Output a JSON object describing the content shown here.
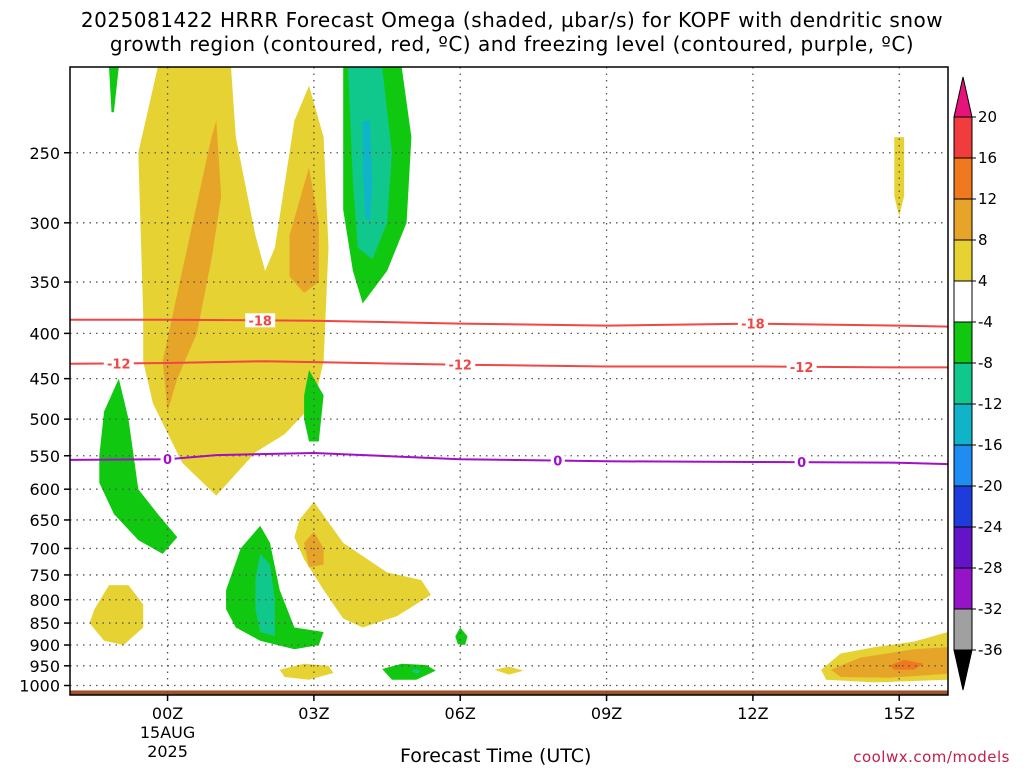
{
  "title": "2025081422 HRRR Forecast Omega (shaded, µbar/s) for KOPF with dendritic snow\ngrowth region (contoured, red, ºC) and freezing level (contoured, purple, ºC)",
  "footer": "coolwx.com/models",
  "chart_data": {
    "type": "heatmap",
    "title": "2025081422 HRRR Forecast Omega (shaded, µbar/s) for KOPF with dendritic snow growth region (contoured, red, ºC) and freezing level (contoured, purple, ºC)",
    "xlabel": "Forecast Time (UTC)",
    "ylabel": "",
    "x_units": "hours from 2025-08-15 00Z",
    "xlim": [
      -2,
      16
    ],
    "ylim_hPa": [
      1025,
      200
    ],
    "y_scale": "log-pressure",
    "grid": true,
    "x_ticks": [
      {
        "value": 0,
        "label": "00Z",
        "sub1": "15AUG",
        "sub2": "2025"
      },
      {
        "value": 3,
        "label": "03Z"
      },
      {
        "value": 6,
        "label": "06Z"
      },
      {
        "value": 9,
        "label": "09Z"
      },
      {
        "value": 12,
        "label": "12Z"
      },
      {
        "value": 15,
        "label": "15Z"
      }
    ],
    "y_ticks": [
      250,
      300,
      350,
      400,
      450,
      500,
      550,
      600,
      650,
      700,
      750,
      800,
      850,
      900,
      950,
      1000
    ],
    "colorbar": {
      "levels": [
        20,
        16,
        12,
        8,
        4,
        -4,
        -8,
        -12,
        -16,
        -20,
        -24,
        -28,
        -32,
        -36
      ],
      "colors": [
        "#f03c3c",
        "#f0781e",
        "#e6a528",
        "#e6d232",
        "#ffffff",
        "#10c810",
        "#10c88c",
        "#10b4c8",
        "#1e8cf0",
        "#1e3cdc",
        "#6414c8",
        "#9614c8",
        "#a0a0a0"
      ],
      "over_color": "#e6147a",
      "under_color": "#000000"
    },
    "contours": [
      {
        "name": "-18",
        "color": "#f04646",
        "points": [
          [
            -2,
            386
          ],
          [
            0,
            386
          ],
          [
            3,
            387
          ],
          [
            6,
            390
          ],
          [
            9,
            392
          ],
          [
            12,
            390
          ],
          [
            15,
            392
          ],
          [
            16,
            393
          ]
        ],
        "labels": [
          {
            "x": 1.9,
            "text": "-18"
          },
          {
            "x": 12,
            "text": "-18"
          }
        ]
      },
      {
        "name": "-12",
        "color": "#f04646",
        "points": [
          [
            -2,
            433
          ],
          [
            0,
            432
          ],
          [
            2,
            430
          ],
          [
            4,
            432
          ],
          [
            6,
            434
          ],
          [
            9,
            436
          ],
          [
            12,
            436
          ],
          [
            15,
            437
          ],
          [
            16,
            437
          ]
        ],
        "labels": [
          {
            "x": -1,
            "text": "-12"
          },
          {
            "x": 6,
            "text": "-12"
          },
          {
            "x": 13,
            "text": "-12"
          }
        ]
      },
      {
        "name": "0",
        "color": "#a010c8",
        "points": [
          [
            -2,
            556
          ],
          [
            0,
            555
          ],
          [
            1,
            549
          ],
          [
            3,
            546
          ],
          [
            6,
            555
          ],
          [
            9,
            558
          ],
          [
            12,
            559
          ],
          [
            15,
            560
          ],
          [
            16,
            562
          ]
        ],
        "labels": [
          {
            "x": 0,
            "text": "0"
          },
          {
            "x": 8,
            "text": "0"
          },
          {
            "x": 13,
            "text": "0"
          }
        ]
      }
    ],
    "shaded_regions": [
      {
        "level": "4 to 8",
        "color": "#e6d232",
        "points": [
          [
            -0.5,
            380
          ],
          [
            -0.6,
            250
          ],
          [
            -0.2,
            200
          ],
          [
            1.3,
            200
          ],
          [
            1.4,
            240
          ],
          [
            1.8,
            310
          ],
          [
            2.0,
            340
          ],
          [
            2.2,
            320
          ],
          [
            2.6,
            230
          ],
          [
            2.9,
            210
          ],
          [
            3.2,
            240
          ],
          [
            3.3,
            320
          ],
          [
            3.2,
            430
          ],
          [
            3.0,
            480
          ],
          [
            2.4,
            520
          ],
          [
            1.8,
            545
          ],
          [
            1.0,
            610
          ],
          [
            0.3,
            560
          ],
          [
            -0.3,
            480
          ],
          [
            -0.5,
            430
          ]
        ]
      },
      {
        "level": "4 to 8",
        "color": "#e6d232",
        "points": [
          [
            2.7,
            650
          ],
          [
            3.0,
            620
          ],
          [
            3.6,
            690
          ],
          [
            4.5,
            745
          ],
          [
            5.2,
            760
          ],
          [
            5.4,
            790
          ],
          [
            4.7,
            835
          ],
          [
            4.0,
            860
          ],
          [
            3.6,
            840
          ],
          [
            3.2,
            780
          ],
          [
            2.8,
            720
          ],
          [
            2.6,
            680
          ]
        ]
      },
      {
        "level": "4 to 8",
        "color": "#e6d232",
        "points": [
          [
            -1.5,
            820
          ],
          [
            -1.2,
            770
          ],
          [
            -0.8,
            770
          ],
          [
            -0.5,
            810
          ],
          [
            -0.5,
            860
          ],
          [
            -0.9,
            900
          ],
          [
            -1.3,
            890
          ],
          [
            -1.6,
            850
          ]
        ]
      },
      {
        "level": "4 to 8",
        "color": "#e6d232",
        "points": [
          [
            2.3,
            960
          ],
          [
            2.8,
            945
          ],
          [
            3.3,
            950
          ],
          [
            3.4,
            968
          ],
          [
            2.9,
            985
          ],
          [
            2.4,
            978
          ]
        ]
      },
      {
        "level": "4 to 8",
        "color": "#e6d232",
        "points": [
          [
            6.7,
            960
          ],
          [
            7.0,
            952
          ],
          [
            7.3,
            962
          ],
          [
            7.0,
            972
          ]
        ]
      },
      {
        "level": "4 to 8",
        "color": "#e6d232",
        "points": [
          [
            14.9,
            240
          ],
          [
            15.1,
            240
          ],
          [
            15.1,
            280
          ],
          [
            15.0,
            295
          ],
          [
            14.9,
            280
          ]
        ]
      },
      {
        "level": "4 to 8",
        "color": "#e6d232",
        "points": [
          [
            13.4,
            960
          ],
          [
            13.8,
            920
          ],
          [
            14.5,
            905
          ],
          [
            15.3,
            892
          ],
          [
            16.0,
            870
          ],
          [
            16.0,
            985
          ],
          [
            14.5,
            992
          ],
          [
            13.5,
            985
          ]
        ]
      },
      {
        "level": "8 to 12",
        "color": "#e6a528",
        "points": [
          [
            -0.1,
            430
          ],
          [
            0.3,
            340
          ],
          [
            0.9,
            240
          ],
          [
            1.0,
            230
          ],
          [
            1.1,
            280
          ],
          [
            0.9,
            330
          ],
          [
            0.6,
            400
          ],
          [
            0.2,
            450
          ],
          [
            0.0,
            490
          ]
        ]
      },
      {
        "level": "8 to 12",
        "color": "#e6a528",
        "points": [
          [
            2.5,
            310
          ],
          [
            2.9,
            260
          ],
          [
            3.1,
            300
          ],
          [
            3.1,
            350
          ],
          [
            2.8,
            360
          ],
          [
            2.5,
            345
          ]
        ]
      },
      {
        "level": "8 to 12",
        "color": "#e6a528",
        "points": [
          [
            2.8,
            690
          ],
          [
            3.0,
            670
          ],
          [
            3.2,
            700
          ],
          [
            3.2,
            730
          ],
          [
            2.9,
            735
          ]
        ]
      },
      {
        "level": "8 to 12",
        "color": "#e6a528",
        "points": [
          [
            13.6,
            960
          ],
          [
            14.2,
            930
          ],
          [
            15.3,
            910
          ],
          [
            16.0,
            905
          ],
          [
            16.0,
            970
          ],
          [
            14.8,
            980
          ],
          [
            13.8,
            978
          ]
        ]
      },
      {
        "level": "12 to 16",
        "color": "#f0781e",
        "points": [
          [
            14.8,
            950
          ],
          [
            15.1,
            935
          ],
          [
            15.5,
            945
          ],
          [
            15.3,
            960
          ],
          [
            14.9,
            960
          ]
        ]
      },
      {
        "level": "-4 to -8",
        "color": "#10c810",
        "points": [
          [
            -1.2,
            200
          ],
          [
            -1.0,
            200
          ],
          [
            -1.1,
            225
          ],
          [
            -1.15,
            225
          ]
        ]
      },
      {
        "level": "-4 to -8",
        "color": "#10c810",
        "points": [
          [
            3.6,
            200
          ],
          [
            4.8,
            200
          ],
          [
            5.0,
            240
          ],
          [
            4.9,
            300
          ],
          [
            4.5,
            340
          ],
          [
            4.0,
            370
          ],
          [
            3.8,
            340
          ],
          [
            3.6,
            290
          ],
          [
            3.6,
            230
          ]
        ]
      },
      {
        "level": "-4 to -8",
        "color": "#10c810",
        "points": [
          [
            -1.4,
            550
          ],
          [
            -1.3,
            490
          ],
          [
            -1.0,
            450
          ],
          [
            -0.8,
            500
          ],
          [
            -0.6,
            600
          ],
          [
            -0.2,
            640
          ],
          [
            0.2,
            680
          ],
          [
            -0.1,
            710
          ],
          [
            -0.6,
            685
          ],
          [
            -1.1,
            640
          ],
          [
            -1.4,
            590
          ]
        ]
      },
      {
        "level": "-4 to -8",
        "color": "#10c810",
        "points": [
          [
            2.8,
            470
          ],
          [
            2.9,
            440
          ],
          [
            3.2,
            470
          ],
          [
            3.1,
            530
          ],
          [
            2.9,
            530
          ],
          [
            2.8,
            500
          ]
        ]
      },
      {
        "level": "-4 to -8",
        "color": "#10c810",
        "points": [
          [
            1.2,
            780
          ],
          [
            1.5,
            700
          ],
          [
            1.9,
            660
          ],
          [
            2.1,
            690
          ],
          [
            2.3,
            780
          ],
          [
            2.6,
            860
          ],
          [
            3.2,
            870
          ],
          [
            3.1,
            900
          ],
          [
            2.6,
            910
          ],
          [
            1.9,
            890
          ],
          [
            1.4,
            860
          ],
          [
            1.2,
            820
          ]
        ]
      },
      {
        "level": "-4 to -8",
        "color": "#10c810",
        "points": [
          [
            4.4,
            958
          ],
          [
            4.8,
            945
          ],
          [
            5.3,
            948
          ],
          [
            5.5,
            962
          ],
          [
            5.1,
            985
          ],
          [
            4.6,
            985
          ]
        ]
      },
      {
        "level": "-4 to -8",
        "color": "#10c810",
        "points": [
          [
            5.9,
            880
          ],
          [
            6.0,
            860
          ],
          [
            6.15,
            880
          ],
          [
            6.1,
            900
          ],
          [
            5.95,
            898
          ]
        ]
      },
      {
        "level": "-8 to -12",
        "color": "#10c88c",
        "points": [
          [
            3.7,
            200
          ],
          [
            4.4,
            200
          ],
          [
            4.6,
            250
          ],
          [
            4.5,
            300
          ],
          [
            4.2,
            330
          ],
          [
            3.9,
            320
          ],
          [
            3.8,
            270
          ]
        ]
      },
      {
        "level": "-8 to -12",
        "color": "#10c88c",
        "points": [
          [
            1.8,
            760
          ],
          [
            1.9,
            710
          ],
          [
            2.1,
            730
          ],
          [
            2.2,
            800
          ],
          [
            2.2,
            880
          ],
          [
            1.9,
            870
          ],
          [
            1.8,
            820
          ]
        ]
      },
      {
        "level": "-8 to -12",
        "color": "#10c88c",
        "points": [
          [
            5.0,
            962
          ],
          [
            5.1,
            958
          ],
          [
            5.2,
            965
          ],
          [
            5.1,
            970
          ]
        ]
      },
      {
        "level": "-12 to -16",
        "color": "#10b4c8",
        "points": [
          [
            4.0,
            230
          ],
          [
            4.15,
            230
          ],
          [
            4.2,
            270
          ],
          [
            4.15,
            300
          ],
          [
            4.05,
            295
          ],
          [
            4.0,
            260
          ]
        ]
      }
    ],
    "ground_hPa": 1013
  }
}
